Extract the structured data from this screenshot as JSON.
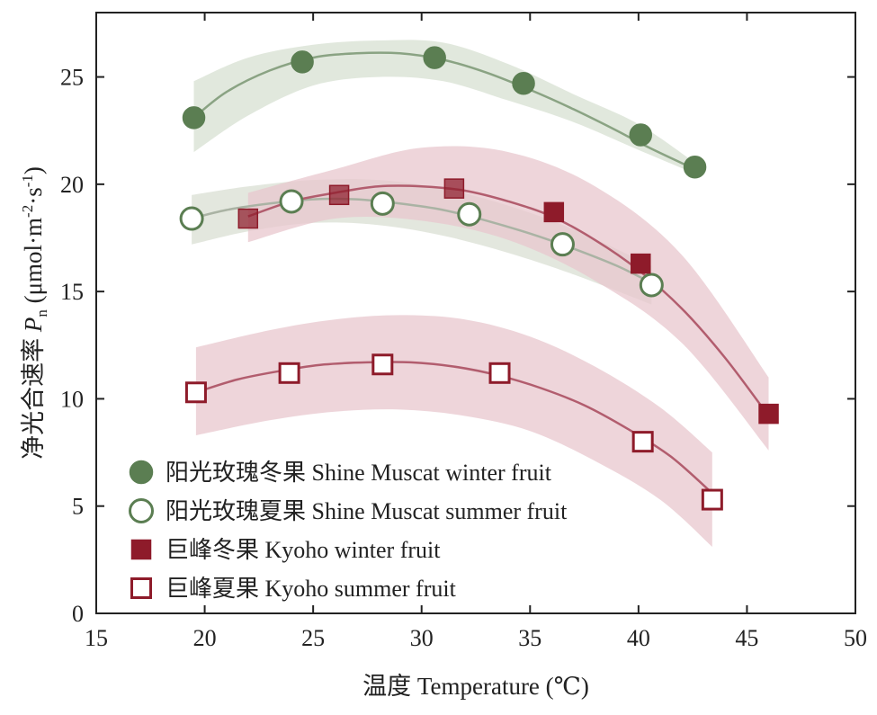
{
  "chart_data": {
    "type": "scatter",
    "title": "",
    "xlabel": "温度 Temperature (℃)",
    "ylabel_prefix": "净光合速率 ",
    "ylabel_italic": "P",
    "ylabel_sub": "n",
    "ylabel_unit_open": " (μmol·m",
    "ylabel_sup1": "-2",
    "ylabel_mid": "·s",
    "ylabel_sup2": "-1",
    "ylabel_close": ")",
    "xlim": [
      15,
      50
    ],
    "ylim": [
      0,
      28
    ],
    "xticks": [
      "15",
      "20",
      "25",
      "30",
      "35",
      "40",
      "45",
      "50"
    ],
    "xtick_values": [
      15,
      20,
      25,
      30,
      35,
      40,
      45,
      50
    ],
    "yticks": [
      "0",
      "5",
      "10",
      "15",
      "20",
      "25"
    ],
    "ytick_values": [
      0,
      5,
      10,
      15,
      20,
      25
    ],
    "legend_position": "bottom-left",
    "series": [
      {
        "name": "阳光玫瑰冬果 Shine Muscat winter fruit",
        "marker": "circle-filled",
        "color": "#5b7e52",
        "line_color": "#8aa383",
        "band_color": "#d7e0d1",
        "x": [
          19.5,
          24.5,
          30.6,
          34.7,
          40.1,
          42.6
        ],
        "y": [
          23.1,
          25.7,
          25.9,
          24.7,
          22.3,
          20.8
        ],
        "fit": [
          [
            19.5,
            23.1
          ],
          [
            21.0,
            24.3
          ],
          [
            23.0,
            25.3
          ],
          [
            25.0,
            25.9
          ],
          [
            27.0,
            26.1
          ],
          [
            29.0,
            26.1
          ],
          [
            31.0,
            25.8
          ],
          [
            33.0,
            25.2
          ],
          [
            35.0,
            24.4
          ],
          [
            37.0,
            23.5
          ],
          [
            39.0,
            22.5
          ],
          [
            40.5,
            21.7
          ],
          [
            42.6,
            20.7
          ]
        ],
        "band_upper": [
          [
            19.5,
            24.8
          ],
          [
            22.0,
            25.9
          ],
          [
            25.0,
            26.5
          ],
          [
            28.0,
            26.7
          ],
          [
            31.0,
            26.6
          ],
          [
            34.0,
            25.6
          ],
          [
            37.0,
            24.2
          ],
          [
            40.0,
            22.8
          ],
          [
            42.6,
            21.0
          ]
        ],
        "band_lower": [
          [
            19.5,
            21.5
          ],
          [
            22.0,
            23.2
          ],
          [
            25.0,
            24.6
          ],
          [
            28.0,
            25.0
          ],
          [
            31.0,
            24.8
          ],
          [
            34.0,
            23.9
          ],
          [
            37.0,
            22.9
          ],
          [
            40.0,
            21.6
          ],
          [
            42.6,
            20.5
          ]
        ]
      },
      {
        "name": "阳光玫瑰夏果 Shine Muscat summer fruit",
        "marker": "circle-open",
        "color": "#5b7e52",
        "line_color": "#aab3a4",
        "band_color": "#d9dfd3",
        "x": [
          19.4,
          24.0,
          28.2,
          32.2,
          36.5,
          40.6
        ],
        "y": [
          18.4,
          19.2,
          19.1,
          18.6,
          17.2,
          15.3
        ],
        "fit": [
          [
            19.4,
            18.4
          ],
          [
            21.0,
            18.8
          ],
          [
            23.0,
            19.1
          ],
          [
            25.0,
            19.3
          ],
          [
            27.0,
            19.3
          ],
          [
            29.0,
            19.1
          ],
          [
            31.0,
            18.8
          ],
          [
            33.0,
            18.3
          ],
          [
            35.0,
            17.7
          ],
          [
            37.0,
            17.0
          ],
          [
            39.0,
            16.2
          ],
          [
            40.6,
            15.4
          ]
        ],
        "band_upper": [
          [
            19.4,
            19.5
          ],
          [
            22.0,
            19.9
          ],
          [
            25.0,
            20.2
          ],
          [
            28.0,
            20.2
          ],
          [
            31.0,
            19.8
          ],
          [
            34.0,
            19.0
          ],
          [
            37.0,
            17.9
          ],
          [
            40.6,
            16.2
          ]
        ],
        "band_lower": [
          [
            19.4,
            17.2
          ],
          [
            22.0,
            17.8
          ],
          [
            25.0,
            18.2
          ],
          [
            28.0,
            18.1
          ],
          [
            31.0,
            17.6
          ],
          [
            34.0,
            16.8
          ],
          [
            37.0,
            15.8
          ],
          [
            40.6,
            14.4
          ]
        ]
      },
      {
        "name": "巨峰冬果 Kyoho winter fruit",
        "marker": "square-filled",
        "color": "#8e1b2a",
        "line_color": "#b25d6e",
        "band_color": "#e8c7cd",
        "x": [
          22.0,
          26.2,
          31.5,
          36.1,
          40.1,
          46.0
        ],
        "y": [
          18.4,
          19.5,
          19.8,
          18.7,
          16.3,
          9.3
        ],
        "fit": [
          [
            22.0,
            18.5
          ],
          [
            24.0,
            19.2
          ],
          [
            26.0,
            19.6
          ],
          [
            28.0,
            19.9
          ],
          [
            30.0,
            19.9
          ],
          [
            32.0,
            19.7
          ],
          [
            34.0,
            19.2
          ],
          [
            36.0,
            18.5
          ],
          [
            38.0,
            17.4
          ],
          [
            40.0,
            16.0
          ],
          [
            42.0,
            14.2
          ],
          [
            44.0,
            11.9
          ],
          [
            46.0,
            9.2
          ]
        ],
        "band_upper": [
          [
            22.0,
            19.6
          ],
          [
            26.0,
            20.7
          ],
          [
            30.0,
            21.7
          ],
          [
            34.0,
            21.5
          ],
          [
            38.0,
            19.9
          ],
          [
            42.0,
            16.7
          ],
          [
            46.0,
            11.0
          ]
        ],
        "band_lower": [
          [
            22.0,
            17.3
          ],
          [
            26.0,
            18.4
          ],
          [
            30.0,
            18.3
          ],
          [
            34.0,
            17.4
          ],
          [
            38.0,
            15.5
          ],
          [
            42.0,
            12.6
          ],
          [
            46.0,
            7.6
          ]
        ]
      },
      {
        "name": "巨峰夏果 Kyoho summer fruit",
        "marker": "square-open",
        "color": "#8e1b2a",
        "line_color": "#b25d6e",
        "band_color": "#e8c7cd",
        "x": [
          19.6,
          23.9,
          28.2,
          33.6,
          40.2,
          43.4
        ],
        "y": [
          10.3,
          11.2,
          11.6,
          11.2,
          8.0,
          5.3
        ],
        "fit": [
          [
            19.6,
            10.3
          ],
          [
            21.5,
            10.9
          ],
          [
            23.5,
            11.3
          ],
          [
            25.5,
            11.6
          ],
          [
            27.5,
            11.7
          ],
          [
            29.5,
            11.7
          ],
          [
            31.5,
            11.5
          ],
          [
            33.5,
            11.1
          ],
          [
            35.5,
            10.5
          ],
          [
            37.5,
            9.7
          ],
          [
            39.5,
            8.6
          ],
          [
            41.5,
            7.3
          ],
          [
            43.4,
            5.6
          ]
        ],
        "band_upper": [
          [
            19.6,
            12.4
          ],
          [
            23.0,
            13.2
          ],
          [
            26.0,
            13.7
          ],
          [
            29.0,
            13.9
          ],
          [
            32.0,
            13.7
          ],
          [
            35.0,
            12.9
          ],
          [
            38.0,
            11.5
          ],
          [
            41.0,
            9.6
          ],
          [
            43.4,
            7.5
          ]
        ],
        "band_lower": [
          [
            19.6,
            8.3
          ],
          [
            23.0,
            9.0
          ],
          [
            26.0,
            9.4
          ],
          [
            29.0,
            9.5
          ],
          [
            32.0,
            9.2
          ],
          [
            35.0,
            8.5
          ],
          [
            38.0,
            7.1
          ],
          [
            41.0,
            5.3
          ],
          [
            43.4,
            3.1
          ]
        ]
      }
    ]
  }
}
